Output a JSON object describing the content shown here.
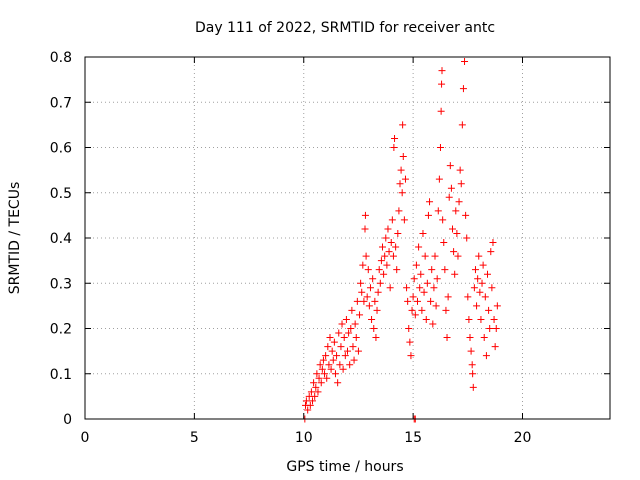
{
  "chart_data": {
    "type": "scatter",
    "title": "Day 111 of 2022, SRMTID for receiver antc",
    "xlabel": "GPS time / hours",
    "ylabel": "SRMTID / TECUs",
    "xlim": [
      0,
      24
    ],
    "ylim": [
      0,
      0.8
    ],
    "xticks": [
      0,
      5,
      10,
      15,
      20
    ],
    "yticks": [
      0,
      0.1,
      0.2,
      0.3,
      0.4,
      0.5,
      0.6,
      0.7,
      0.8
    ],
    "grid": true,
    "legend": "none",
    "marker": "plus",
    "color": "#ff0000",
    "series": [
      {
        "name": "SRMTID",
        "points": [
          [
            10.08,
            0.03
          ],
          [
            10.12,
            0.04
          ],
          [
            10.18,
            0.02
          ],
          [
            10.25,
            0.05
          ],
          [
            10.3,
            0.03
          ],
          [
            10.35,
            0.06
          ],
          [
            10.4,
            0.04
          ],
          [
            10.45,
            0.08
          ],
          [
            10.5,
            0.05
          ],
          [
            10.55,
            0.07
          ],
          [
            10.6,
            0.1
          ],
          [
            10.65,
            0.06
          ],
          [
            10.7,
            0.09
          ],
          [
            10.75,
            0.12
          ],
          [
            10.8,
            0.08
          ],
          [
            10.85,
            0.11
          ],
          [
            10.9,
            0.13
          ],
          [
            10.95,
            0.1
          ],
          [
            11.0,
            0.14
          ],
          [
            11.05,
            0.09
          ],
          [
            11.1,
            0.16
          ],
          [
            11.15,
            0.12
          ],
          [
            11.2,
            0.18
          ],
          [
            11.25,
            0.11
          ],
          [
            11.3,
            0.15
          ],
          [
            11.35,
            0.13
          ],
          [
            11.4,
            0.17
          ],
          [
            11.45,
            0.1
          ],
          [
            11.5,
            0.14
          ],
          [
            11.55,
            0.08
          ],
          [
            11.6,
            0.19
          ],
          [
            11.65,
            0.12
          ],
          [
            11.7,
            0.16
          ],
          [
            11.75,
            0.21
          ],
          [
            11.8,
            0.11
          ],
          [
            11.85,
            0.18
          ],
          [
            11.9,
            0.14
          ],
          [
            11.95,
            0.22
          ],
          [
            12.0,
            0.15
          ],
          [
            12.05,
            0.19
          ],
          [
            12.1,
            0.12
          ],
          [
            12.15,
            0.2
          ],
          [
            12.2,
            0.24
          ],
          [
            12.25,
            0.16
          ],
          [
            12.3,
            0.13
          ],
          [
            12.35,
            0.21
          ],
          [
            12.4,
            0.18
          ],
          [
            12.45,
            0.26
          ],
          [
            12.5,
            0.15
          ],
          [
            12.55,
            0.23
          ],
          [
            12.6,
            0.3
          ],
          [
            12.65,
            0.28
          ],
          [
            12.7,
            0.34
          ],
          [
            12.75,
            0.26
          ],
          [
            12.8,
            0.42
          ],
          [
            12.82,
            0.45
          ],
          [
            12.85,
            0.36
          ],
          [
            12.9,
            0.27
          ],
          [
            12.95,
            0.33
          ],
          [
            13.0,
            0.25
          ],
          [
            13.05,
            0.29
          ],
          [
            13.1,
            0.22
          ],
          [
            13.15,
            0.31
          ],
          [
            13.2,
            0.2
          ],
          [
            13.25,
            0.26
          ],
          [
            13.3,
            0.18
          ],
          [
            13.35,
            0.24
          ],
          [
            13.4,
            0.28
          ],
          [
            13.45,
            0.33
          ],
          [
            13.5,
            0.3
          ],
          [
            13.55,
            0.35
          ],
          [
            13.6,
            0.38
          ],
          [
            13.65,
            0.32
          ],
          [
            13.7,
            0.36
          ],
          [
            13.75,
            0.4
          ],
          [
            13.8,
            0.34
          ],
          [
            13.85,
            0.42
          ],
          [
            13.9,
            0.37
          ],
          [
            13.95,
            0.29
          ],
          [
            14.0,
            0.39
          ],
          [
            14.05,
            0.44
          ],
          [
            14.1,
            0.36
          ],
          [
            14.12,
            0.6
          ],
          [
            14.15,
            0.62
          ],
          [
            14.2,
            0.38
          ],
          [
            14.25,
            0.33
          ],
          [
            14.3,
            0.41
          ],
          [
            14.35,
            0.46
          ],
          [
            14.4,
            0.52
          ],
          [
            14.45,
            0.55
          ],
          [
            14.5,
            0.5
          ],
          [
            14.52,
            0.65
          ],
          [
            14.55,
            0.58
          ],
          [
            14.6,
            0.44
          ],
          [
            14.65,
            0.53
          ],
          [
            14.7,
            0.29
          ],
          [
            14.75,
            0.26
          ],
          [
            14.8,
            0.2
          ],
          [
            14.85,
            0.17
          ],
          [
            14.9,
            0.14
          ],
          [
            14.95,
            0.24
          ],
          [
            15.0,
            0.27
          ],
          [
            15.05,
            0.31
          ],
          [
            15.1,
            0.23
          ],
          [
            15.15,
            0.34
          ],
          [
            15.2,
            0.26
          ],
          [
            15.25,
            0.38
          ],
          [
            15.3,
            0.29
          ],
          [
            15.35,
            0.32
          ],
          [
            15.4,
            0.24
          ],
          [
            15.45,
            0.41
          ],
          [
            15.5,
            0.28
          ],
          [
            15.55,
            0.36
          ],
          [
            15.6,
            0.22
          ],
          [
            15.65,
            0.3
          ],
          [
            15.7,
            0.45
          ],
          [
            15.75,
            0.48
          ],
          [
            15.8,
            0.26
          ],
          [
            15.85,
            0.33
          ],
          [
            15.9,
            0.21
          ],
          [
            15.95,
            0.29
          ],
          [
            16.0,
            0.36
          ],
          [
            16.05,
            0.25
          ],
          [
            16.1,
            0.31
          ],
          [
            16.15,
            0.46
          ],
          [
            16.2,
            0.53
          ],
          [
            16.25,
            0.6
          ],
          [
            16.28,
            0.68
          ],
          [
            16.3,
            0.74
          ],
          [
            16.32,
            0.77
          ],
          [
            16.35,
            0.44
          ],
          [
            16.4,
            0.39
          ],
          [
            16.45,
            0.33
          ],
          [
            16.5,
            0.24
          ],
          [
            16.55,
            0.18
          ],
          [
            16.6,
            0.27
          ],
          [
            16.65,
            0.49
          ],
          [
            16.7,
            0.56
          ],
          [
            16.75,
            0.51
          ],
          [
            16.8,
            0.42
          ],
          [
            16.85,
            0.37
          ],
          [
            16.9,
            0.32
          ],
          [
            16.95,
            0.46
          ],
          [
            17.0,
            0.41
          ],
          [
            17.05,
            0.36
          ],
          [
            17.1,
            0.48
          ],
          [
            17.15,
            0.55
          ],
          [
            17.2,
            0.52
          ],
          [
            17.25,
            0.65
          ],
          [
            17.3,
            0.73
          ],
          [
            17.35,
            0.79
          ],
          [
            17.4,
            0.45
          ],
          [
            17.45,
            0.4
          ],
          [
            17.5,
            0.27
          ],
          [
            17.55,
            0.22
          ],
          [
            17.6,
            0.18
          ],
          [
            17.65,
            0.15
          ],
          [
            17.7,
            0.12
          ],
          [
            17.72,
            0.1
          ],
          [
            17.75,
            0.07
          ],
          [
            17.8,
            0.29
          ],
          [
            17.85,
            0.33
          ],
          [
            17.9,
            0.25
          ],
          [
            17.95,
            0.31
          ],
          [
            18.0,
            0.36
          ],
          [
            18.05,
            0.28
          ],
          [
            18.1,
            0.22
          ],
          [
            18.15,
            0.3
          ],
          [
            18.2,
            0.34
          ],
          [
            18.25,
            0.18
          ],
          [
            18.3,
            0.27
          ],
          [
            18.35,
            0.14
          ],
          [
            18.4,
            0.32
          ],
          [
            18.45,
            0.24
          ],
          [
            18.5,
            0.2
          ],
          [
            18.55,
            0.37
          ],
          [
            18.6,
            0.29
          ],
          [
            18.65,
            0.39
          ],
          [
            18.7,
            0.22
          ],
          [
            18.75,
            0.16
          ],
          [
            18.8,
            0.2
          ],
          [
            18.85,
            0.25
          ],
          [
            15.05,
            0.0
          ],
          [
            15.1,
            0.0
          ],
          [
            10.05,
            0.0
          ]
        ]
      }
    ]
  }
}
